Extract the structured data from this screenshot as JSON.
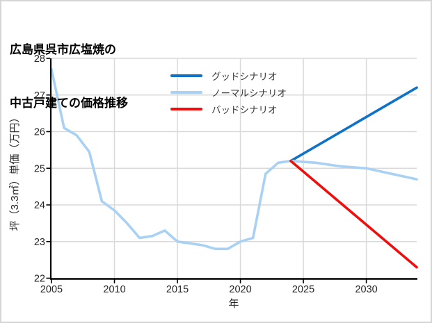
{
  "page": {
    "background": "#ffffff",
    "border_color": "#d5d5d5"
  },
  "colors": {
    "good": "#0e72c8",
    "normal": "#a8d1f4",
    "bad": "#f20d0d",
    "grid": "#d9d9d9",
    "axis": "#000000",
    "tick_text": "#262626",
    "legend_text": "#3a3a3a"
  },
  "chart_data": {
    "type": "line",
    "title": "広島県呉市広塩焼の中古戸建ての価格推移",
    "title_line1": "広島県呉市広塩焼の",
    "title_line2": "中古戸建ての価格推移",
    "xlabel": "年",
    "ylabel": "坪（3.3㎡）単価（万円）",
    "xlim": [
      2005,
      2034
    ],
    "ylim": [
      22,
      28
    ],
    "xticks": [
      2005,
      2010,
      2015,
      2020,
      2025,
      2030
    ],
    "yticks": [
      22,
      23,
      24,
      25,
      26,
      27,
      28
    ],
    "grid": true,
    "legend_position": "upper-center-inside",
    "series": [
      {
        "id": "history",
        "label": null,
        "legend": false,
        "color": "#a8d1f4",
        "width": 3.6,
        "x": [
          2005,
          2006,
          2007,
          2008,
          2009,
          2010,
          2011,
          2012,
          2013,
          2014,
          2015,
          2016,
          2017,
          2018,
          2019,
          2020,
          2021,
          2022,
          2023,
          2024
        ],
        "y": [
          27.7,
          26.1,
          25.9,
          25.45,
          24.1,
          23.85,
          23.5,
          23.1,
          23.15,
          23.3,
          23.0,
          22.95,
          22.9,
          22.8,
          22.8,
          23.0,
          23.1,
          24.85,
          25.15,
          25.2
        ]
      },
      {
        "id": "good-scenario",
        "label": "グッドシナリオ",
        "legend": true,
        "color": "#0e72c8",
        "width": 3.6,
        "x": [
          2024,
          2034
        ],
        "y": [
          25.2,
          27.2
        ]
      },
      {
        "id": "normal-scenario",
        "label": "ノーマルシナリオ",
        "legend": true,
        "color": "#a8d1f4",
        "width": 3.6,
        "x": [
          2024,
          2026,
          2028,
          2030,
          2032,
          2034
        ],
        "y": [
          25.2,
          25.15,
          25.05,
          25.0,
          24.85,
          24.7
        ]
      },
      {
        "id": "bad-scenario",
        "label": "バッドシナリオ",
        "legend": true,
        "color": "#f20d0d",
        "width": 3.6,
        "x": [
          2024,
          2034
        ],
        "y": [
          25.2,
          22.3
        ]
      }
    ]
  }
}
